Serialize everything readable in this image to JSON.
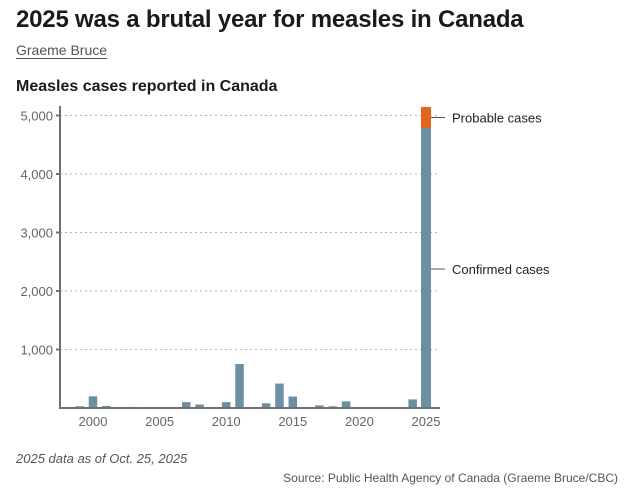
{
  "header": {
    "title": "2025 was a brutal year for measles in Canada",
    "byline": "Graeme Bruce"
  },
  "footer": {
    "note": "2025 data as of Oct. 25, 2025",
    "source": "Source: Public Health Agency of Canada (Graeme Bruce/CBC)"
  },
  "colors": {
    "confirmed": "#6b8fa3",
    "probable": "#e0661c",
    "axis": "#707070",
    "grid": "#b5b5b5"
  },
  "chart_data": {
    "type": "bar",
    "stacked": true,
    "title": "Measles cases reported in Canada",
    "xlabel": "",
    "ylabel": "",
    "x": [
      1998,
      1999,
      2000,
      2001,
      2002,
      2003,
      2004,
      2005,
      2006,
      2007,
      2008,
      2009,
      2010,
      2011,
      2012,
      2013,
      2014,
      2015,
      2016,
      2017,
      2018,
      2019,
      2020,
      2021,
      2022,
      2023,
      2024,
      2025
    ],
    "series": [
      {
        "name": "Confirmed cases",
        "values": [
          12,
          30,
          200,
          35,
          6,
          18,
          10,
          6,
          1,
          100,
          60,
          10,
          100,
          752,
          10,
          80,
          418,
          195,
          11,
          45,
          29,
          113,
          1,
          0,
          3,
          12,
          147,
          4786
        ]
      },
      {
        "name": "Probable cases",
        "values": [
          0,
          0,
          0,
          0,
          0,
          0,
          0,
          0,
          0,
          0,
          0,
          0,
          0,
          0,
          0,
          0,
          0,
          0,
          0,
          0,
          0,
          0,
          0,
          0,
          0,
          0,
          0,
          359
        ]
      }
    ],
    "xticks": [
      2000,
      2005,
      2010,
      2015,
      2020,
      2025
    ],
    "xtick_labels": [
      "2000",
      "2005",
      "2010",
      "2015",
      "2020",
      "2025"
    ],
    "yticks": [
      1000,
      2000,
      3000,
      4000,
      5000
    ],
    "ytick_labels": [
      "1,000",
      "2,000",
      "3,000",
      "4,000",
      "5,000"
    ],
    "ylim": [
      0,
      5200
    ],
    "xlim": [
      1997.5,
      2025.5
    ],
    "grid": true,
    "legend": "direct labels on right of 2025 bar",
    "annotations": [
      {
        "text": "Probable cases",
        "series": "Probable cases"
      },
      {
        "text": "Confirmed cases",
        "series": "Confirmed cases"
      }
    ]
  }
}
